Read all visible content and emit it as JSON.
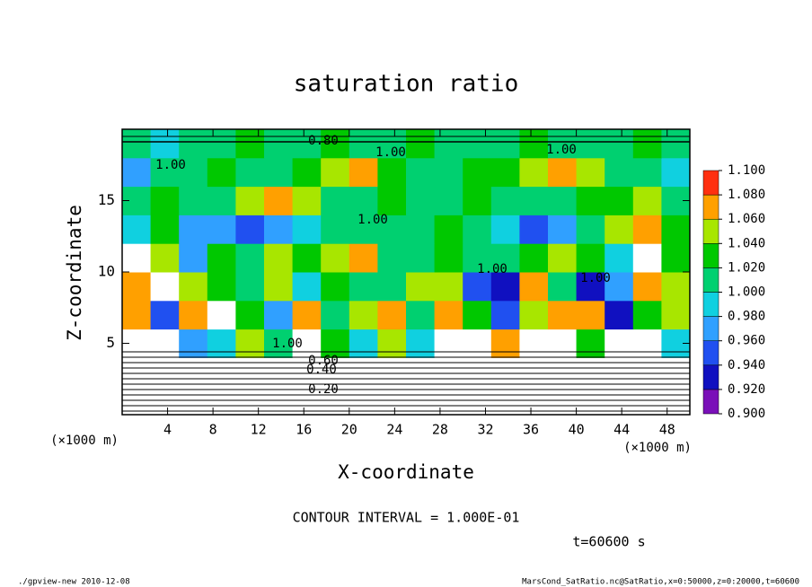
{
  "chart_data": {
    "type": "heatmap",
    "title": "saturation ratio",
    "x_label": "X-coordinate",
    "y_label": "Z-coordinate",
    "x_unit": "(×1000 m)",
    "y_unit": "(×1000 m)",
    "xlim": [
      0,
      50
    ],
    "ylim": [
      0,
      20
    ],
    "xticks": [
      4,
      8,
      12,
      16,
      20,
      24,
      28,
      32,
      36,
      40,
      44,
      48
    ],
    "yticks": [
      5,
      10,
      15
    ],
    "levels": [
      0.9,
      0.92,
      0.94,
      0.96,
      0.98,
      1.0,
      1.02,
      1.04,
      1.06,
      1.08,
      1.1
    ],
    "level_colors": [
      "#7a10b8",
      "#1010c0",
      "#2050f0",
      "#30a0ff",
      "#10d0e0",
      "#00d070",
      "#00c800",
      "#a8e600",
      "#ffa000",
      "#ff3010",
      "#f4a0a0"
    ],
    "colorbar_ticks": [
      {
        "value": 0.9,
        "label": "0.900"
      },
      {
        "value": 0.92,
        "label": "0.920"
      },
      {
        "value": 0.94,
        "label": "0.940"
      },
      {
        "value": 0.96,
        "label": "0.960"
      },
      {
        "value": 0.98,
        "label": "0.980"
      },
      {
        "value": 1.0,
        "label": "1.000"
      },
      {
        "value": 1.02,
        "label": "1.020"
      },
      {
        "value": 1.04,
        "label": "1.040"
      },
      {
        "value": 1.06,
        "label": "1.060"
      },
      {
        "value": 1.08,
        "label": "1.080"
      },
      {
        "value": 1.1,
        "label": "1.100"
      }
    ],
    "z": [
      [
        0.2,
        0.2,
        0.2,
        0.2,
        0.2,
        0.2,
        0.2,
        0.2,
        0.2,
        0.2,
        0.2,
        0.2,
        0.2,
        0.2,
        0.2,
        0.2,
        0.2,
        0.2,
        0.2,
        0.2
      ],
      [
        0.5,
        0.5,
        0.5,
        0.5,
        0.5,
        0.5,
        0.5,
        0.5,
        0.5,
        0.5,
        0.5,
        0.5,
        0.5,
        0.5,
        0.5,
        0.5,
        0.5,
        0.5,
        0.5,
        0.5
      ],
      [
        1.12,
        1.12,
        0.97,
        0.99,
        1.05,
        1.0,
        1.12,
        1.03,
        0.98,
        1.04,
        0.99,
        1.12,
        1.12,
        1.06,
        1.12,
        1.12,
        1.03,
        1.12,
        1.12,
        0.99
      ],
      [
        1.06,
        0.95,
        1.07,
        1.12,
        1.02,
        0.97,
        1.06,
        1.0,
        1.04,
        1.07,
        1.0,
        1.06,
        1.03,
        0.94,
        1.05,
        1.06,
        1.07,
        0.93,
        1.02,
        1.05
      ],
      [
        1.07,
        1.12,
        1.05,
        1.03,
        1.0,
        1.04,
        0.99,
        1.02,
        1.0,
        1.01,
        1.04,
        1.05,
        0.95,
        0.93,
        1.06,
        1.0,
        0.92,
        0.96,
        1.07,
        1.04
      ],
      [
        1.12,
        1.04,
        0.97,
        1.02,
        1.01,
        1.05,
        1.03,
        1.04,
        1.06,
        1.01,
        1.0,
        1.02,
        1.0,
        1.01,
        1.02,
        1.04,
        1.03,
        0.98,
        1.12,
        1.03
      ],
      [
        0.98,
        1.02,
        0.96,
        0.96,
        0.95,
        0.97,
        0.99,
        1.01,
        1.0,
        1.01,
        1.0,
        1.02,
        1.01,
        0.98,
        0.95,
        0.97,
        1.0,
        1.05,
        1.06,
        1.03
      ],
      [
        1.0,
        1.03,
        1.01,
        1.0,
        1.05,
        1.07,
        1.04,
        1.01,
        1.0,
        1.02,
        1.01,
        1.0,
        1.02,
        1.01,
        1.0,
        1.01,
        1.03,
        1.02,
        1.05,
        1.0
      ],
      [
        0.97,
        1.0,
        1.01,
        1.02,
        1.0,
        1.01,
        1.02,
        1.04,
        1.06,
        1.03,
        1.0,
        1.01,
        1.02,
        1.03,
        1.05,
        1.07,
        1.04,
        1.01,
        1.0,
        0.98
      ],
      [
        1.0,
        0.98,
        1.01,
        1.0,
        1.02,
        1.01,
        1.0,
        1.03,
        1.01,
        1.0,
        1.02,
        1.0,
        1.01,
        1.0,
        1.02,
        1.01,
        1.0,
        1.01,
        1.02,
        1.0
      ]
    ],
    "contour_labels": [
      "0.80",
      "1.00",
      "1.00",
      "1.00",
      "1.00",
      "1.00",
      "1.00",
      "1.00",
      "0.60",
      "0.40",
      "0.20"
    ],
    "contour_interval": "CONTOUR INTERVAL = 1.000E-01",
    "time_label": "t=60600 s",
    "footer_left": "./gpview-new  2010-12-08",
    "footer_right": "MarsCond_SatRatio.nc@SatRatio,x=0:50000,z=0:20000,t=60600"
  }
}
